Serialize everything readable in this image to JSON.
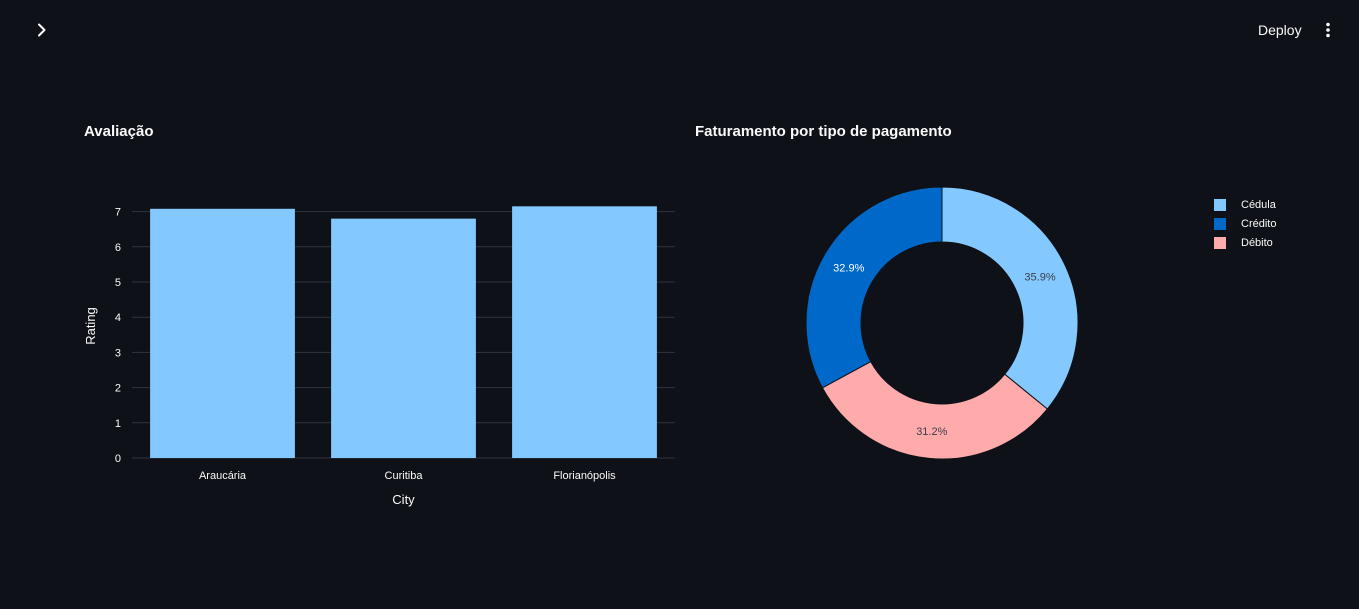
{
  "header": {
    "deploy_label": "Deploy"
  },
  "icons": {
    "sidebar_toggle": "chevron-right-icon",
    "main_menu": "kebab-menu-icon"
  },
  "colors": {
    "background": "#0e1117",
    "bar": "#83c9ff",
    "grid": "#31333f",
    "text": "#fafafa",
    "slice_cedula": "#83c9ff",
    "slice_credito": "#0068c9",
    "slice_debito": "#ffabab"
  },
  "bar_panel": {
    "title": "Avaliação"
  },
  "pie_panel": {
    "title": "Faturamento por tipo de pagamento",
    "legend": [
      "Cédula",
      "Crédito",
      "Débito"
    ]
  },
  "chart_data": [
    {
      "type": "bar",
      "title": "Avaliação",
      "categories": [
        "Araucária",
        "Curitiba",
        "Florianópolis"
      ],
      "values": [
        7.08,
        6.8,
        7.15
      ],
      "xlabel": "City",
      "ylabel": "Rating",
      "ylim": [
        0,
        7.5
      ],
      "yticks": [
        0,
        1,
        2,
        3,
        4,
        5,
        6,
        7
      ],
      "grid": true
    },
    {
      "type": "pie",
      "title": "Faturamento por tipo de pagamento",
      "hole": true,
      "labels": [
        "Cédula",
        "Débito",
        "Crédito"
      ],
      "values": [
        35.9,
        31.2,
        32.9
      ],
      "value_labels": [
        "35.9%",
        "31.2%",
        "32.9%"
      ],
      "legend_position": "top-right"
    }
  ]
}
